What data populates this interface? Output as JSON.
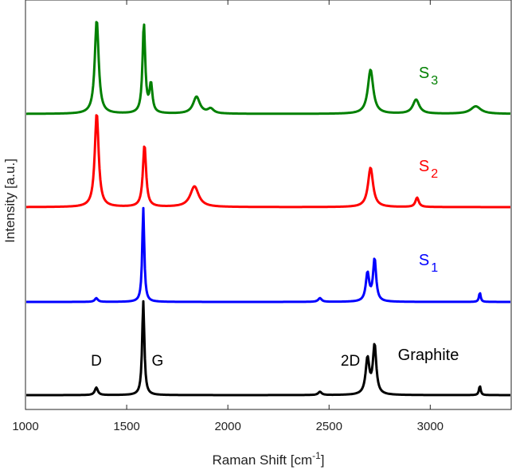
{
  "chart_data": {
    "type": "line",
    "title": "",
    "xlabel": "Raman Shift [cm",
    "xlabel_sup": "-1",
    "xlabel_close": "]",
    "ylabel": "Intensity [a.u.]",
    "xlim": [
      1000,
      3400
    ],
    "x_ticks": [
      1000,
      1500,
      2000,
      2500,
      3000
    ],
    "x_tick_labels": [
      "1000",
      "1500",
      "2000",
      "2500",
      "3000"
    ],
    "y_ticks_shown": false,
    "grid": false,
    "peak_annotations": [
      {
        "text": "D",
        "x": 1350
      },
      {
        "text": "G",
        "x": 1582
      },
      {
        "text": "2D",
        "x": 2700
      }
    ],
    "series": [
      {
        "name": "Graphite",
        "label_main": "Graphite",
        "label_sub": "",
        "color": "#000000",
        "baseline": 0.0,
        "peaks": [
          {
            "center": 1350,
            "height": 0.08,
            "width": 18
          },
          {
            "center": 1582,
            "height": 1.0,
            "width": 13
          },
          {
            "center": 2455,
            "height": 0.035,
            "width": 20
          },
          {
            "center": 2690,
            "height": 0.38,
            "width": 22
          },
          {
            "center": 2725,
            "height": 0.52,
            "width": 20
          },
          {
            "center": 3245,
            "height": 0.1,
            "width": 10
          }
        ]
      },
      {
        "name": "S1",
        "label_main": "S",
        "label_sub": "1",
        "color": "#0000ff",
        "baseline": 1.0,
        "peaks": [
          {
            "center": 1350,
            "height": 0.04,
            "width": 18
          },
          {
            "center": 1582,
            "height": 1.0,
            "width": 12
          },
          {
            "center": 2455,
            "height": 0.04,
            "width": 20
          },
          {
            "center": 2690,
            "height": 0.3,
            "width": 20
          },
          {
            "center": 2725,
            "height": 0.45,
            "width": 18
          },
          {
            "center": 3245,
            "height": 0.1,
            "width": 10
          }
        ]
      },
      {
        "name": "S2",
        "label_main": "S",
        "label_sub": "2",
        "color": "#ff0000",
        "baseline": 2.0,
        "peaks": [
          {
            "center": 1352,
            "height": 1.0,
            "width": 23
          },
          {
            "center": 1588,
            "height": 0.66,
            "width": 19
          },
          {
            "center": 1835,
            "height": 0.22,
            "width": 50
          },
          {
            "center": 2705,
            "height": 0.42,
            "width": 30
          },
          {
            "center": 2935,
            "height": 0.1,
            "width": 20
          }
        ]
      },
      {
        "name": "S3",
        "label_main": "S",
        "label_sub": "3",
        "color": "#008000",
        "baseline": 3.0,
        "peaks": [
          {
            "center": 1352,
            "height": 1.0,
            "width": 23
          },
          {
            "center": 1585,
            "height": 0.95,
            "width": 16
          },
          {
            "center": 1620,
            "height": 0.3,
            "width": 17
          },
          {
            "center": 1845,
            "height": 0.18,
            "width": 40
          },
          {
            "center": 1915,
            "height": 0.05,
            "width": 35
          },
          {
            "center": 2705,
            "height": 0.47,
            "width": 32
          },
          {
            "center": 2930,
            "height": 0.15,
            "width": 38
          },
          {
            "center": 3225,
            "height": 0.08,
            "width": 60
          }
        ]
      }
    ]
  }
}
